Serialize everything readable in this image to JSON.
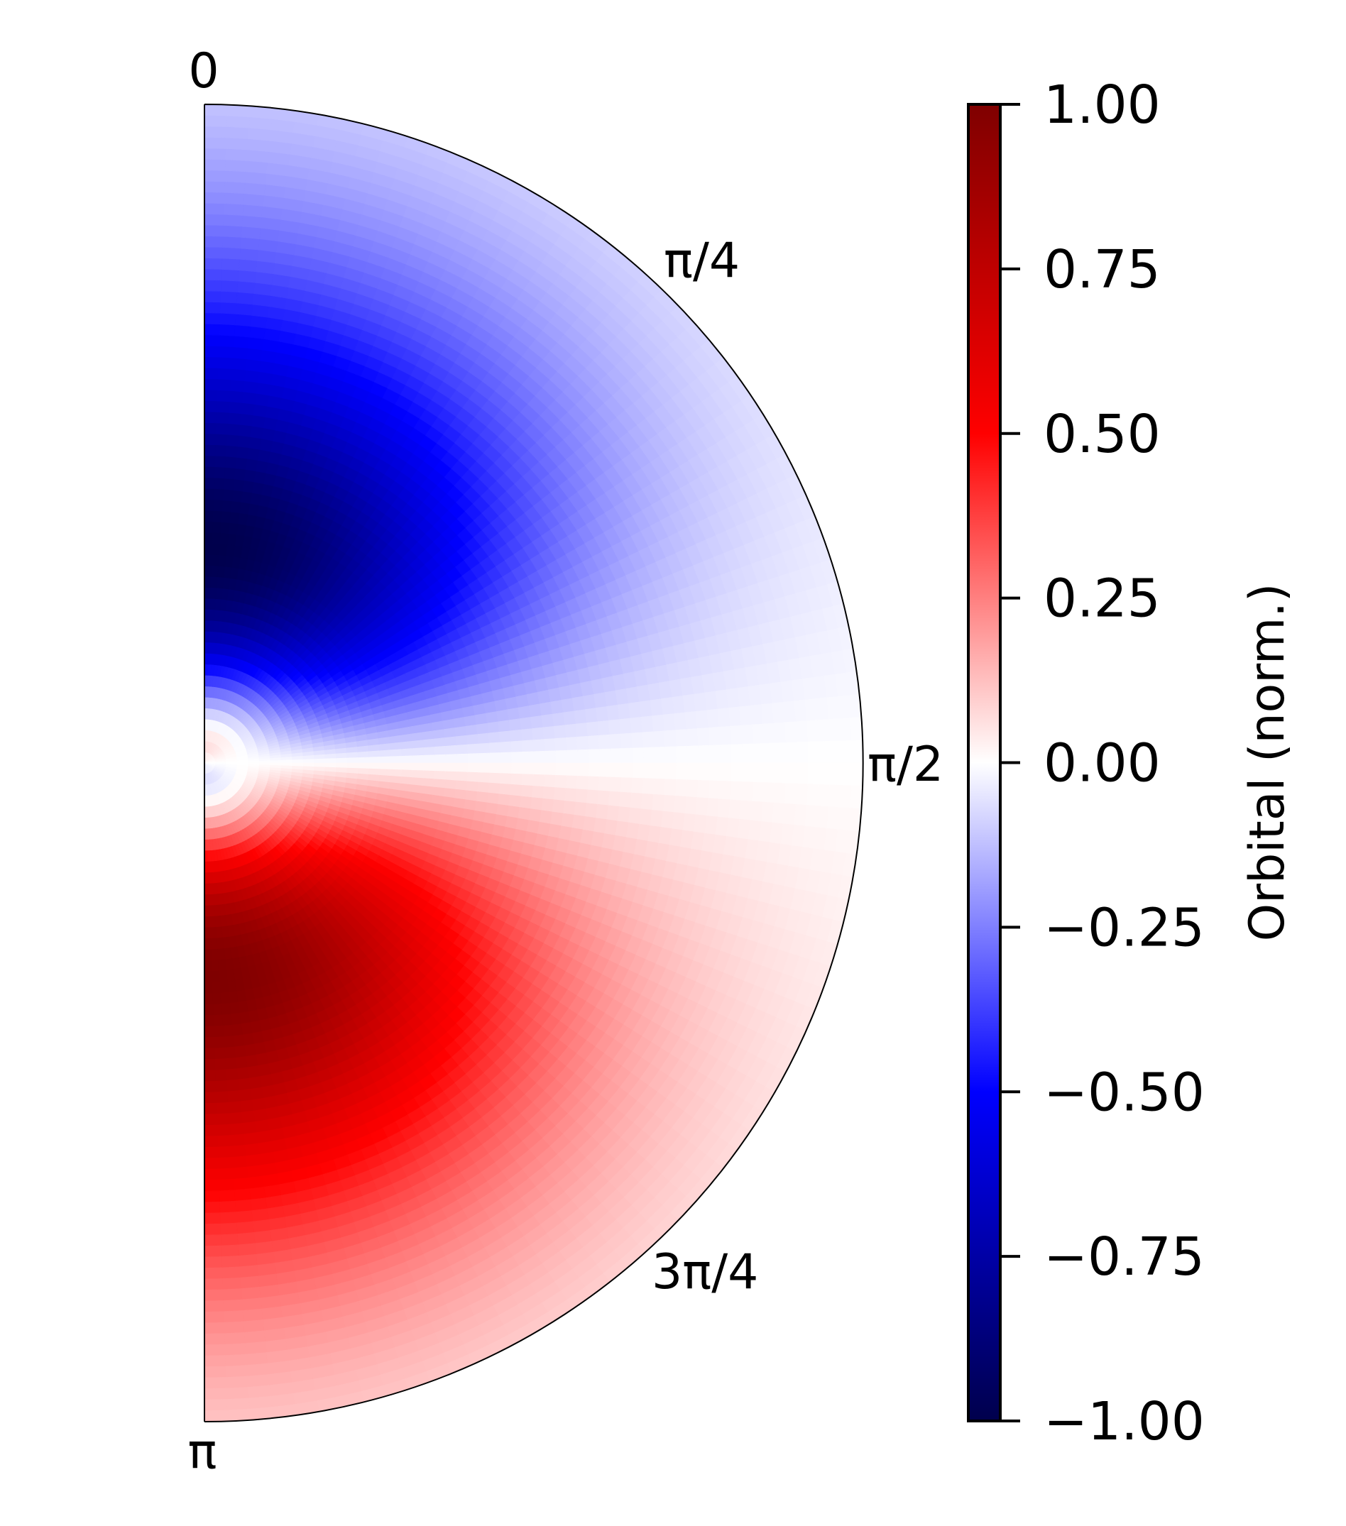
{
  "chart_data": {
    "type": "heatmap",
    "projection": "polar-half",
    "title": "",
    "angle_ticks": [
      "0",
      "π/4",
      "π/2",
      "3π/4",
      "π"
    ],
    "colorbar": {
      "label": "Orbital (norm.)",
      "range": [
        -1.0,
        1.0
      ],
      "ticks": [
        1.0,
        0.75,
        0.5,
        0.25,
        0.0,
        -0.25,
        -0.5,
        -0.75,
        -1.0
      ],
      "tick_labels": [
        "1.00",
        "0.75",
        "0.50",
        "0.25",
        "0.00",
        "−0.25",
        "−0.50",
        "−0.75",
        "−1.00"
      ],
      "colormap": "seismic",
      "colormap_stops": [
        "#00004c",
        "#0000ff",
        "#ffffff",
        "#ff0000",
        "#7f0000"
      ]
    },
    "field": {
      "description_values": {
        "positive_lobe_peak": 1.0,
        "negative_lobe_peak": -1.0,
        "nodal_angle": "π/2"
      }
    },
    "grid": false
  }
}
